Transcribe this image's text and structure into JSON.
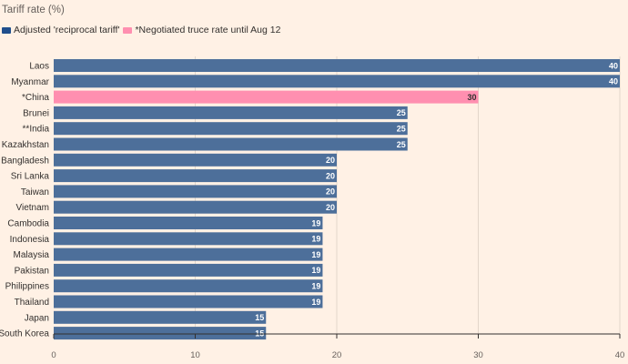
{
  "chart_data": {
    "type": "bar",
    "orientation": "horizontal",
    "title": "Tariff rate (%)",
    "series": [
      {
        "name": "Adjusted 'reciprocal tariff'",
        "color": "#4d6f9a"
      },
      {
        "name": "*Negotiated truce rate until Aug 12",
        "color": "#ff8fb0"
      }
    ],
    "categories": [
      "Laos",
      "Myanmar",
      "*China",
      "Brunei",
      "**India",
      "Kazakhstan",
      "Bangladesh",
      "Sri Lanka",
      "Taiwan",
      "Vietnam",
      "Cambodia",
      "Indonesia",
      "Malaysia",
      "Pakistan",
      "Philippines",
      "Thailand",
      "Japan",
      "South Korea"
    ],
    "values": [
      40,
      40,
      30,
      25,
      25,
      25,
      20,
      20,
      20,
      20,
      19,
      19,
      19,
      19,
      19,
      19,
      15,
      15
    ],
    "highlight_index": 2,
    "xlim": [
      0,
      40
    ],
    "xticks": [
      0,
      10,
      20,
      30,
      40
    ],
    "grid": true,
    "legend_position": "top-left"
  }
}
